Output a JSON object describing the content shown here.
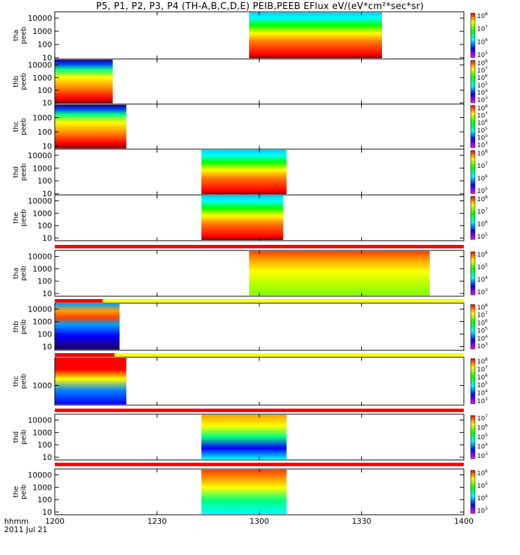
{
  "window": {
    "title": "P5, P1, P2, P3, P4 (TH-A,B,C,D,E) PEIB,PEEB EFlux eV/(eV*cm²*sec*sr)"
  },
  "xaxis": {
    "unit_label": "hhmm",
    "date_label": "2011 Jul 21"
  },
  "chart_data": {
    "type": "heatmap",
    "title": "P5, P1, P2, P3, P4 (TH-A,B,C,D,E) PEIB,PEEB EFlux eV/(eV*cm²*sec*sr)",
    "x_ticks": [
      "1200",
      "1230",
      "1300",
      "1330",
      "1400"
    ],
    "x_range_minutes": [
      0,
      120
    ],
    "y_scale": "log",
    "colorscale": [
      "#ff00ff",
      "#0000ff",
      "#00ffff",
      "#00ff00",
      "#ffff00",
      "#ff0000"
    ],
    "panels": [
      {
        "label": "tha peeb",
        "ylim": [
          8,
          30000
        ],
        "y_ticks": [
          "10",
          "100",
          "1000",
          "10000"
        ],
        "cbar_ticks": [
          "10^5",
          "10^6",
          "10^7",
          "10^8"
        ],
        "data_span_min": [
          57,
          96
        ]
      },
      {
        "label": "thb peeb",
        "ylim": [
          8,
          30000
        ],
        "y_ticks": [
          "10",
          "100",
          "1000",
          "10000"
        ],
        "cbar_ticks": [
          "10^3",
          "10^4",
          "10^5",
          "10^6",
          "10^7",
          "10^8"
        ],
        "data_span_min": [
          0,
          17
        ]
      },
      {
        "label": "thc peeb",
        "ylim": [
          6,
          9000
        ],
        "y_ticks": [
          "10",
          "100",
          "1000"
        ],
        "cbar_ticks": [
          "10^3",
          "10^4",
          "10^5",
          "10^6",
          "10^7",
          "10^8"
        ],
        "data_span_min": [
          0,
          21
        ]
      },
      {
        "label": "thd peeb",
        "ylim": [
          8,
          30000
        ],
        "y_ticks": [
          "10",
          "100",
          "1000",
          "10000"
        ],
        "cbar_ticks": [
          "10^5",
          "10^6",
          "10^7",
          "10^8"
        ],
        "data_span_min": [
          43,
          68
        ]
      },
      {
        "label": "the peeb",
        "ylim": [
          6,
          30000
        ],
        "y_ticks": [
          "10",
          "100",
          "1000",
          "10000"
        ],
        "cbar_ticks": [
          "10^5",
          "10^6",
          "10^7",
          "10^8"
        ],
        "data_span_min": [
          43,
          67
        ]
      },
      {
        "label": "tha peib",
        "ylim": [
          6,
          30000
        ],
        "y_ticks": [
          "10",
          "100",
          "1000",
          "10000"
        ],
        "cbar_ticks": [
          "10^3",
          "10^4",
          "10^5",
          "10^6"
        ],
        "data_span_min": [
          57,
          110
        ]
      },
      {
        "label": "thb peib",
        "ylim": [
          5,
          30000
        ],
        "y_ticks": [
          "10",
          "100",
          "1000",
          "10000"
        ],
        "cbar_ticks": [
          "10^3",
          "10^4",
          "10^5",
          "10^6",
          "10^7",
          "10^8"
        ],
        "data_span_min": [
          0,
          19
        ]
      },
      {
        "label": "thc peib",
        "ylim": [
          200,
          10000
        ],
        "y_ticks": [
          "1000"
        ],
        "cbar_ticks": [
          "10^3",
          "10^4",
          "10^5",
          "10^6",
          "10^7",
          "10^8"
        ],
        "data_span_min": [
          0,
          21
        ]
      },
      {
        "label": "thd peib",
        "ylim": [
          6,
          30000
        ],
        "y_ticks": [
          "10",
          "100",
          "1000",
          "10000"
        ],
        "cbar_ticks": [
          "10^3",
          "10^4",
          "10^5",
          "10^6",
          "10^7"
        ],
        "data_span_min": [
          43,
          68
        ]
      },
      {
        "label": "the peib",
        "ylim": [
          6,
          30000
        ],
        "y_ticks": [
          "10",
          "100",
          "1000",
          "10000"
        ],
        "cbar_ticks": [
          "10^3",
          "10^4",
          "10^5",
          "10^6"
        ],
        "data_span_min": [
          43,
          68
        ]
      }
    ]
  }
}
